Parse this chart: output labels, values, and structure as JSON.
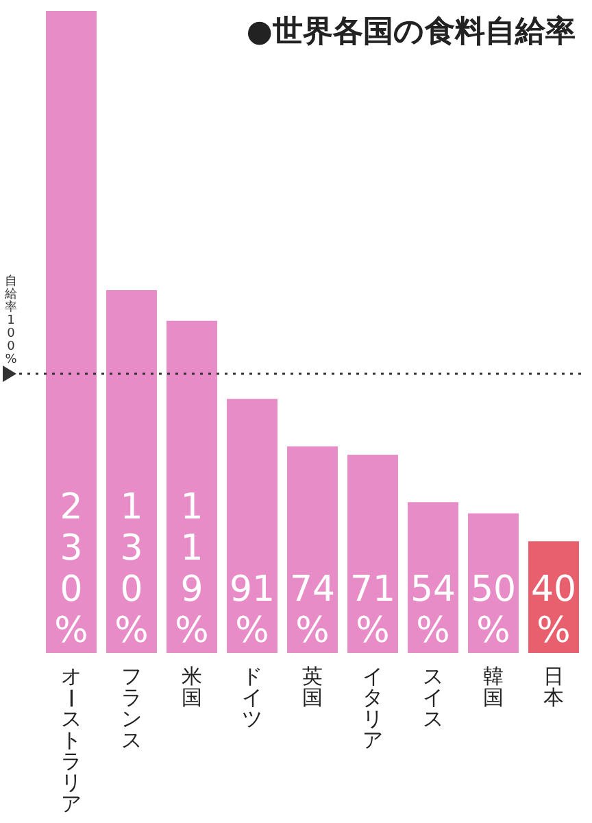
{
  "chart_data": {
    "type": "bar",
    "title": "●世界各国の食料自給率",
    "categories": [
      "オーストラリア",
      "フランス",
      "米国",
      "ドイツ",
      "英国",
      "イタリア",
      "スイス",
      "韓国",
      "日本"
    ],
    "values": [
      230,
      130,
      119,
      91,
      74,
      71,
      54,
      50,
      40
    ],
    "colors": [
      "#e88cc8",
      "#e88cc8",
      "#e88cc8",
      "#e88cc8",
      "#e88cc8",
      "#e88cc8",
      "#e88cc8",
      "#e88cc8",
      "#e8606e"
    ],
    "value_labels": [
      "230%",
      "130%",
      "119%",
      "91%",
      "74%",
      "71%",
      "54%",
      "50%",
      "40%"
    ],
    "ref_lines": [
      {
        "axis": "y",
        "value": 100,
        "label": "自給率100%",
        "line_style": "dotted",
        "color": "#333333"
      }
    ],
    "line_style": "solid"
  }
}
